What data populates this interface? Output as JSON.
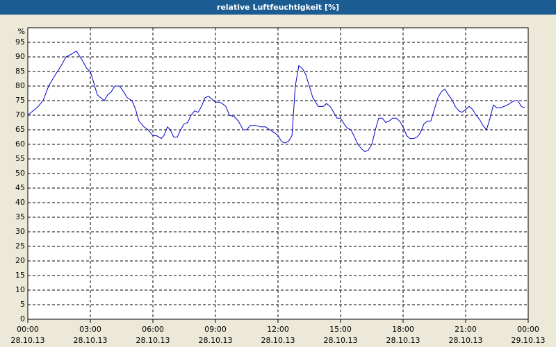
{
  "chart_data": {
    "type": "line",
    "title": "relative Luftfeuchtigkeit [%]",
    "ylabel": "%",
    "x": [
      0,
      0.17,
      0.5,
      0.73,
      1,
      1.33,
      1.6,
      1.83,
      2.1,
      2.33,
      2.6,
      2.83,
      3,
      3.17,
      3.33,
      3.67,
      3.83,
      4,
      4.17,
      4.4,
      4.6,
      4.77,
      5,
      5.17,
      5.33,
      5.57,
      5.77,
      6,
      6.17,
      6.4,
      6.53,
      6.7,
      6.83,
      7,
      7.17,
      7.33,
      7.5,
      7.67,
      7.83,
      8,
      8.17,
      8.33,
      8.5,
      8.67,
      8.83,
      9,
      9.17,
      9.33,
      9.5,
      9.67,
      9.9,
      10.1,
      10.33,
      10.5,
      10.67,
      10.93,
      11.17,
      11.4,
      11.6,
      11.83,
      12,
      12.17,
      12.33,
      12.5,
      12.67,
      12.83,
      13,
      13.17,
      13.33,
      13.5,
      13.67,
      13.93,
      14.17,
      14.33,
      14.5,
      14.67,
      14.83,
      15,
      15.17,
      15.33,
      15.5,
      15.67,
      15.83,
      16,
      16.17,
      16.33,
      16.5,
      16.67,
      16.83,
      17,
      17.17,
      17.33,
      17.5,
      17.67,
      17.83,
      18,
      18.17,
      18.33,
      18.5,
      18.67,
      18.83,
      19,
      19.17,
      19.33,
      19.5,
      19.67,
      19.83,
      20,
      20.17,
      20.33,
      20.5,
      20.67,
      20.83,
      21,
      21.17,
      21.33,
      21.5,
      21.67,
      21.83,
      22,
      22.17,
      22.33,
      22.5,
      22.67,
      23,
      23.33,
      23.5,
      23.67,
      23.83
    ],
    "values": [
      70,
      71,
      73,
      75,
      80,
      84,
      87,
      90,
      91,
      92,
      89,
      86,
      85,
      81,
      77,
      75,
      77,
      78,
      80,
      80,
      78,
      76,
      75,
      72,
      68,
      66,
      65,
      63,
      63,
      62,
      63,
      66,
      65,
      62.5,
      62.5,
      65,
      67,
      67.5,
      70,
      71.5,
      71,
      73,
      76,
      76.5,
      75.5,
      74.5,
      74.5,
      74,
      73,
      70,
      69.5,
      68,
      65,
      65,
      66.5,
      66.5,
      66,
      66,
      65,
      64,
      63,
      61,
      60.5,
      61,
      63,
      80,
      87,
      86,
      84,
      80,
      76,
      73,
      73,
      74,
      73,
      71,
      69,
      69,
      67,
      65.5,
      65,
      62.5,
      60,
      58.5,
      57.5,
      58,
      60,
      65,
      69,
      69,
      67.5,
      68,
      69,
      69,
      68,
      66,
      63,
      62,
      62,
      62.5,
      64,
      67,
      68,
      68,
      72,
      76,
      78,
      79,
      77,
      75.5,
      73,
      71.5,
      71,
      72,
      73,
      72,
      70,
      68.5,
      66.5,
      65,
      69,
      73.5,
      72.5,
      72.5,
      73.5,
      75,
      75,
      73,
      72.5
    ],
    "color": "#0000cc",
    "xlim": [
      0,
      24
    ],
    "xticks": [
      {
        "value": 0,
        "label": "00:00"
      },
      {
        "value": 3,
        "label": "03:00"
      },
      {
        "value": 6,
        "label": "06:00"
      },
      {
        "value": 9,
        "label": "09:00"
      },
      {
        "value": 12,
        "label": "12:00"
      },
      {
        "value": 15,
        "label": "15:00"
      },
      {
        "value": 18,
        "label": "18:00"
      },
      {
        "value": 21,
        "label": "21:00"
      },
      {
        "value": 24,
        "label": "00:00"
      }
    ],
    "xtick_dates": [
      "28.10.13",
      "28.10.13",
      "28.10.13",
      "28.10.13",
      "28.10.13",
      "28.10.13",
      "28.10.13",
      "28.10.13",
      "29.10.13"
    ],
    "ylim": [
      0,
      100
    ],
    "yticks": [
      0,
      5,
      10,
      15,
      20,
      25,
      30,
      35,
      40,
      45,
      50,
      55,
      60,
      65,
      70,
      75,
      80,
      85,
      90,
      95
    ],
    "grid": true
  }
}
